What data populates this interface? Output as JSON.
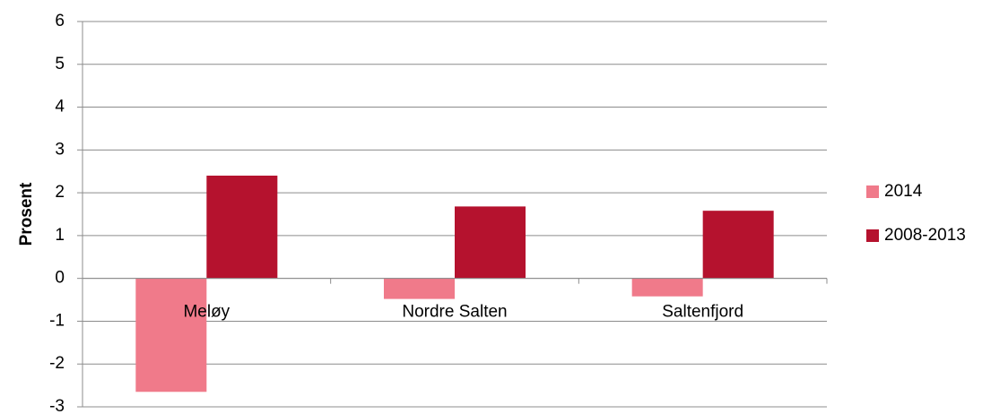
{
  "chart_data": {
    "type": "bar",
    "y_label": "Prosent",
    "categories": [
      "Meløy",
      "Nordre Salten",
      "Saltenfjord"
    ],
    "series": [
      {
        "name": "2014",
        "color": "#f07a8a",
        "values": [
          -2.65,
          -0.48,
          -0.42
        ]
      },
      {
        "name": "2008-2013",
        "color": "#b5122e",
        "values": [
          2.4,
          1.68,
          1.58
        ]
      }
    ],
    "ylim": [
      -3,
      6
    ],
    "yticks": [
      -3,
      -2,
      -1,
      0,
      1,
      2,
      3,
      4,
      5,
      6
    ],
    "grid": true,
    "legend": "right"
  }
}
